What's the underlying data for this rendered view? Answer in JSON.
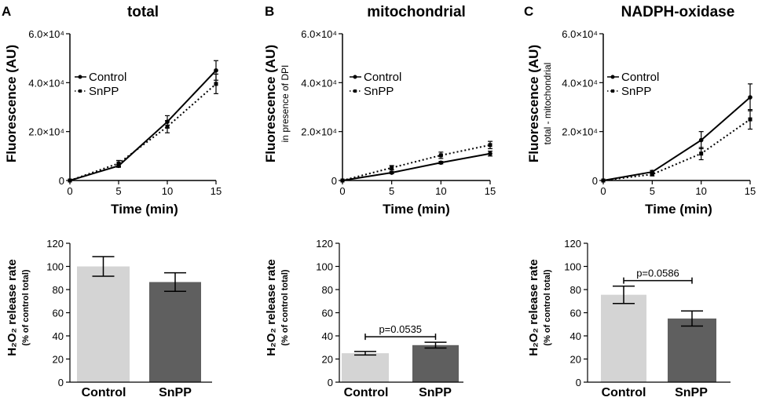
{
  "line_panels": [
    {
      "letter": "A",
      "title": "total",
      "ylabel": "Fluorescence (AU)",
      "ylabel_sub": "",
      "xlabel": "Time (min)",
      "xticks": [
        "0",
        "5",
        "10",
        "15"
      ],
      "ytick_labels": [
        "0",
        "2.0×10⁴",
        "4.0×10⁴",
        "6.0×10⁴"
      ],
      "legend": [
        "Control",
        "SnPP"
      ]
    },
    {
      "letter": "B",
      "title": "mitochondrial",
      "ylabel": "Fluorescence (AU)",
      "ylabel_sub": "in presence of DPI",
      "xlabel": "Time (min)",
      "xticks": [
        "0",
        "5",
        "10",
        "15"
      ],
      "ytick_labels": [
        "0",
        "2.0×10⁴",
        "4.0×10⁴",
        "6.0×10⁴"
      ],
      "legend": [
        "Control",
        "SnPP"
      ]
    },
    {
      "letter": "C",
      "title": "NADPH-oxidase",
      "ylabel": "Fluorescence (AU)",
      "ylabel_sub": "total - mitochondrial",
      "xlabel": "Time (min)",
      "xticks": [
        "0",
        "5",
        "10",
        "15"
      ],
      "ytick_labels": [
        "0",
        "2.0×10⁴",
        "4.0×10⁴",
        "6.0×10⁴"
      ],
      "legend": [
        "Control",
        "SnPP"
      ]
    }
  ],
  "bar_panels": [
    {
      "ylabel": "H₂O₂ release rate",
      "ylabel_sub": "(% of control total)",
      "yticks": [
        "0",
        "20",
        "40",
        "60",
        "80",
        "100",
        "120"
      ],
      "categories": [
        "Control",
        "SnPP"
      ],
      "pvalue": ""
    },
    {
      "ylabel": "H₂O₂ release rate",
      "ylabel_sub": "(% of control total)",
      "yticks": [
        "0",
        "20",
        "40",
        "60",
        "80",
        "100",
        "120"
      ],
      "categories": [
        "Control",
        "SnPP"
      ],
      "pvalue": "p=0.0535"
    },
    {
      "ylabel": "H₂O₂ release rate",
      "ylabel_sub": "(% of control total)",
      "yticks": [
        "0",
        "20",
        "40",
        "60",
        "80",
        "100",
        "120"
      ],
      "categories": [
        "Control",
        "SnPP"
      ],
      "pvalue": "p=0.0586"
    }
  ],
  "colors": {
    "control_bar": "#d4d4d4",
    "snpp_bar": "#5f5f5f",
    "line": "#000000"
  },
  "chart_data": [
    {
      "type": "line",
      "panel": "A",
      "title": "total",
      "xlabel": "Time (min)",
      "ylabel": "Fluorescence (AU)",
      "x": [
        0,
        5,
        10,
        15
      ],
      "ylim": [
        0,
        60000
      ],
      "xlim": [
        0,
        15
      ],
      "series": [
        {
          "name": "Control",
          "style": "solid",
          "values": [
            0,
            6000,
            24000,
            45000
          ],
          "errors": [
            0,
            600,
            2500,
            4000
          ]
        },
        {
          "name": "SnPP",
          "style": "dotted",
          "values": [
            0,
            7000,
            22000,
            39500
          ],
          "errors": [
            0,
            1200,
            2500,
            4000
          ]
        }
      ]
    },
    {
      "type": "line",
      "panel": "B",
      "title": "mitochondrial",
      "xlabel": "Time (min)",
      "ylabel": "Fluorescence (AU) in presence of DPI",
      "x": [
        0,
        5,
        10,
        15
      ],
      "ylim": [
        0,
        60000
      ],
      "xlim": [
        0,
        15
      ],
      "series": [
        {
          "name": "Control",
          "style": "solid",
          "values": [
            0,
            3200,
            7300,
            11000
          ],
          "errors": [
            0,
            400,
            500,
            1000
          ]
        },
        {
          "name": "SnPP",
          "style": "dotted",
          "values": [
            0,
            5200,
            10300,
            14500
          ],
          "errors": [
            0,
            900,
            1300,
            1500
          ]
        }
      ]
    },
    {
      "type": "line",
      "panel": "C",
      "title": "NADPH-oxidase",
      "xlabel": "Time (min)",
      "ylabel": "Fluorescence (AU) total - mitochondrial",
      "x": [
        0,
        5,
        10,
        15
      ],
      "ylim": [
        0,
        60000
      ],
      "xlim": [
        0,
        15
      ],
      "series": [
        {
          "name": "Control",
          "style": "solid",
          "values": [
            0,
            3500,
            16500,
            34000
          ],
          "errors": [
            0,
            600,
            3500,
            5500
          ]
        },
        {
          "name": "SnPP",
          "style": "dotted",
          "values": [
            0,
            2500,
            11000,
            25000
          ],
          "errors": [
            0,
            600,
            2500,
            4000
          ]
        }
      ]
    },
    {
      "type": "bar",
      "panel": "A",
      "title": "total",
      "ylabel": "H2O2 release rate (% of control total)",
      "categories": [
        "Control",
        "SnPP"
      ],
      "values": [
        100,
        86.5
      ],
      "errors": [
        8.5,
        8
      ],
      "ylim": [
        0,
        120
      ]
    },
    {
      "type": "bar",
      "panel": "B",
      "title": "mitochondrial",
      "ylabel": "H2O2 release rate (% of control total)",
      "categories": [
        "Control",
        "SnPP"
      ],
      "values": [
        25,
        32
      ],
      "errors": [
        1.5,
        2.5
      ],
      "ylim": [
        0,
        120
      ],
      "annotation": "p=0.0535"
    },
    {
      "type": "bar",
      "panel": "C",
      "title": "NADPH-oxidase",
      "ylabel": "H2O2 release rate (% of control total)",
      "categories": [
        "Control",
        "SnPP"
      ],
      "values": [
        75.5,
        55
      ],
      "errors": [
        7.5,
        6.5
      ],
      "ylim": [
        0,
        120
      ],
      "annotation": "p=0.0586"
    }
  ]
}
